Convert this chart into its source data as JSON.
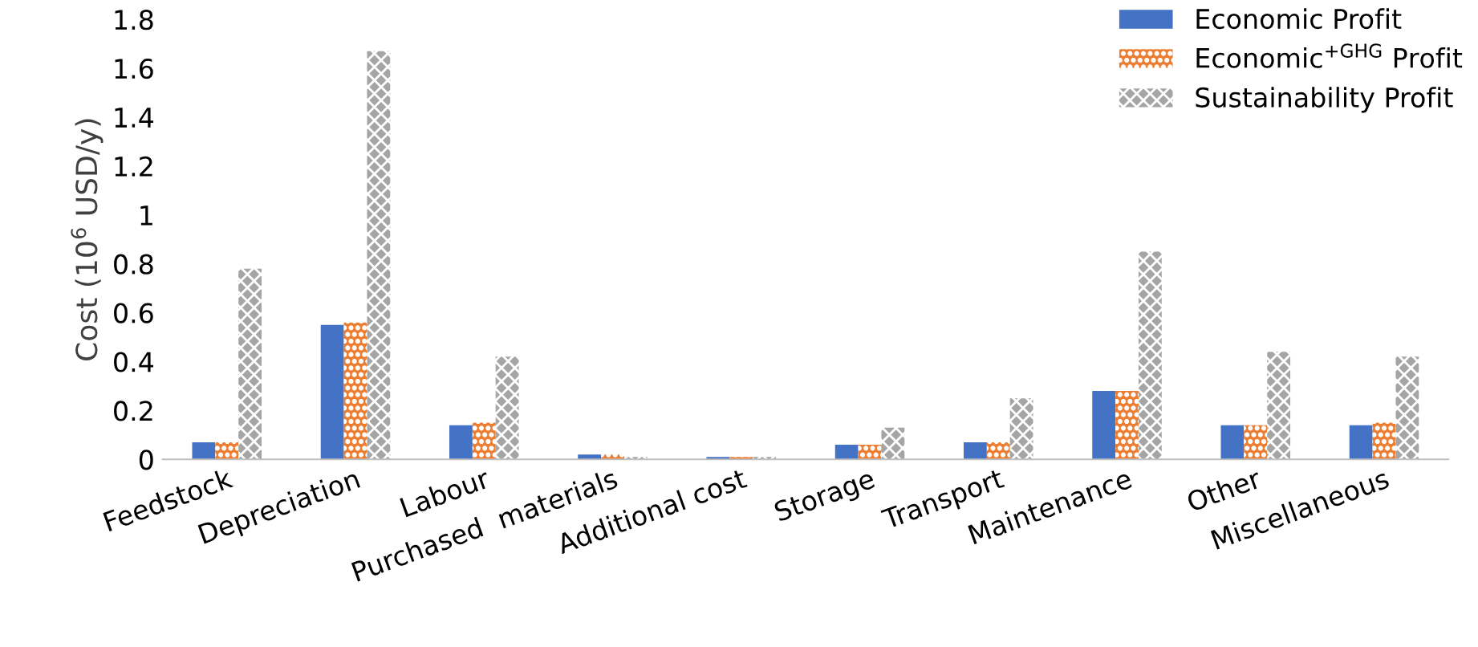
{
  "chart_data": {
    "type": "bar",
    "ylabel": "Cost (10$^{6}$ USD/y)",
    "categories": [
      "Feedstock",
      "Depreciation",
      "Labour",
      "Purchased  materials",
      "Additional cost",
      "Storage",
      "Transport",
      "Maintenance",
      "Other",
      "Miscellaneous"
    ],
    "series": [
      {
        "name": "Economic Profit",
        "color": "#4472c4",
        "values": [
          0.07,
          0.55,
          0.14,
          0.02,
          0.01,
          0.06,
          0.07,
          0.28,
          0.14,
          0.14
        ]
      },
      {
        "name": "Economic$^{+GHG}$ Profit",
        "color": "#ed7d31",
        "values": [
          0.07,
          0.56,
          0.15,
          0.02,
          0.01,
          0.06,
          0.07,
          0.28,
          0.14,
          0.15
        ]
      },
      {
        "name": "Sustainability Profit",
        "color": "#a5a5a5",
        "values": [
          0.78,
          1.67,
          0.42,
          0.01,
          0.01,
          0.13,
          0.25,
          0.85,
          0.44,
          0.42
        ]
      }
    ],
    "ylim": [
      0,
      1.8
    ],
    "yticks": [
      0,
      0.2,
      0.4,
      0.6,
      0.8,
      1,
      1.2,
      1.4,
      1.6,
      1.8
    ],
    "grid": false,
    "legend": "top right"
  }
}
